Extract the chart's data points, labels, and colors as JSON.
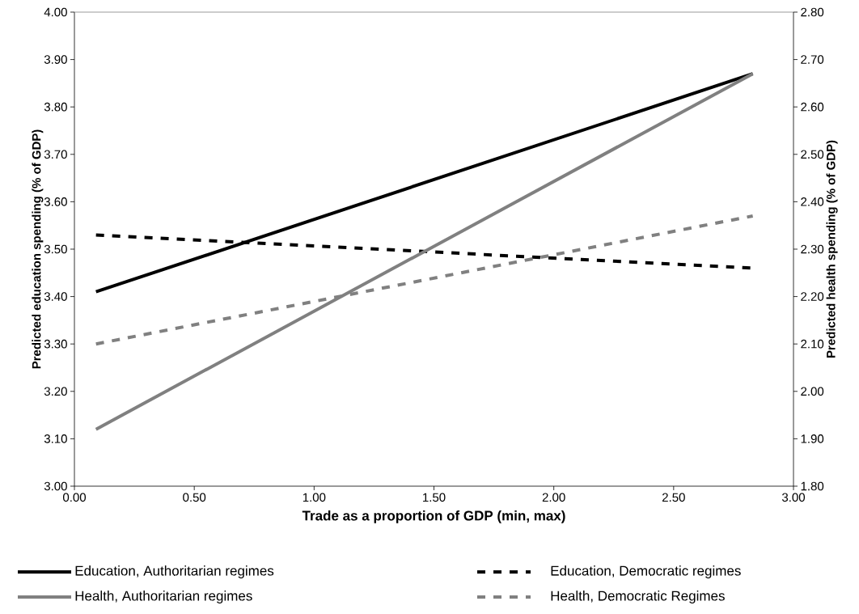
{
  "chart_data": {
    "type": "line",
    "xlabel": "Trade as a proportion of GDP (min, max)",
    "ylabel": "Predicted education spending (% of GDP)",
    "y2label": "Predicted health spending (% of GDP)",
    "x": [
      0.09,
      2.83
    ],
    "series": [
      {
        "name": "Education, Authoritarian regimes",
        "color": "#000000",
        "line_style": "solid",
        "values": [
          3.41,
          3.87
        ]
      },
      {
        "name": "Education, Democratic regimes",
        "color": "#000000",
        "line_style": "dashed",
        "values": [
          3.53,
          3.46
        ]
      },
      {
        "name": "Health, Authoritarian regimes",
        "color": "#808080",
        "line_style": "solid",
        "axis": "y2",
        "values": [
          1.92,
          2.67
        ]
      },
      {
        "name": "Health, Democratic Regimes",
        "color": "#808080",
        "line_style": "dashed",
        "axis": "y2",
        "values": [
          2.1,
          2.37
        ]
      }
    ],
    "xlim": [
      0,
      3
    ],
    "xticks": [
      {
        "value": 0,
        "label": "0.00"
      },
      {
        "value": 0.5,
        "label": "0.50"
      },
      {
        "value": 1,
        "label": "1.00"
      },
      {
        "value": 1.5,
        "label": "1.50"
      },
      {
        "value": 2,
        "label": "2.00"
      },
      {
        "value": 2.5,
        "label": "2.50"
      },
      {
        "value": 3,
        "label": "3.00"
      }
    ],
    "ylim": [
      3,
      4
    ],
    "yticks": [
      {
        "value": 3,
        "label": "3.00"
      },
      {
        "value": 3.1,
        "label": "3.10"
      },
      {
        "value": 3.2,
        "label": "3.20"
      },
      {
        "value": 3.3,
        "label": "3.30"
      },
      {
        "value": 3.4,
        "label": "3.40"
      },
      {
        "value": 3.5,
        "label": "3.50"
      },
      {
        "value": 3.6,
        "label": "3.60"
      },
      {
        "value": 3.7,
        "label": "3.70"
      },
      {
        "value": 3.8,
        "label": "3.80"
      },
      {
        "value": 3.9,
        "label": "3.90"
      },
      {
        "value": 4,
        "label": "4.00"
      }
    ],
    "y2lim": [
      1.8,
      2.8
    ],
    "y2ticks": [
      {
        "value": 1.8,
        "label": "1.80"
      },
      {
        "value": 1.9,
        "label": "1.90"
      },
      {
        "value": 2,
        "label": "2.00"
      },
      {
        "value": 2.1,
        "label": "2.10"
      },
      {
        "value": 2.2,
        "label": "2.20"
      },
      {
        "value": 2.3,
        "label": "2.30"
      },
      {
        "value": 2.4,
        "label": "2.40"
      },
      {
        "value": 2.5,
        "label": "2.50"
      },
      {
        "value": 2.6,
        "label": "2.60"
      },
      {
        "value": 2.7,
        "label": "2.70"
      },
      {
        "value": 2.8,
        "label": "2.80"
      }
    ],
    "grid": false,
    "legend": "bottom",
    "marker": "none"
  }
}
